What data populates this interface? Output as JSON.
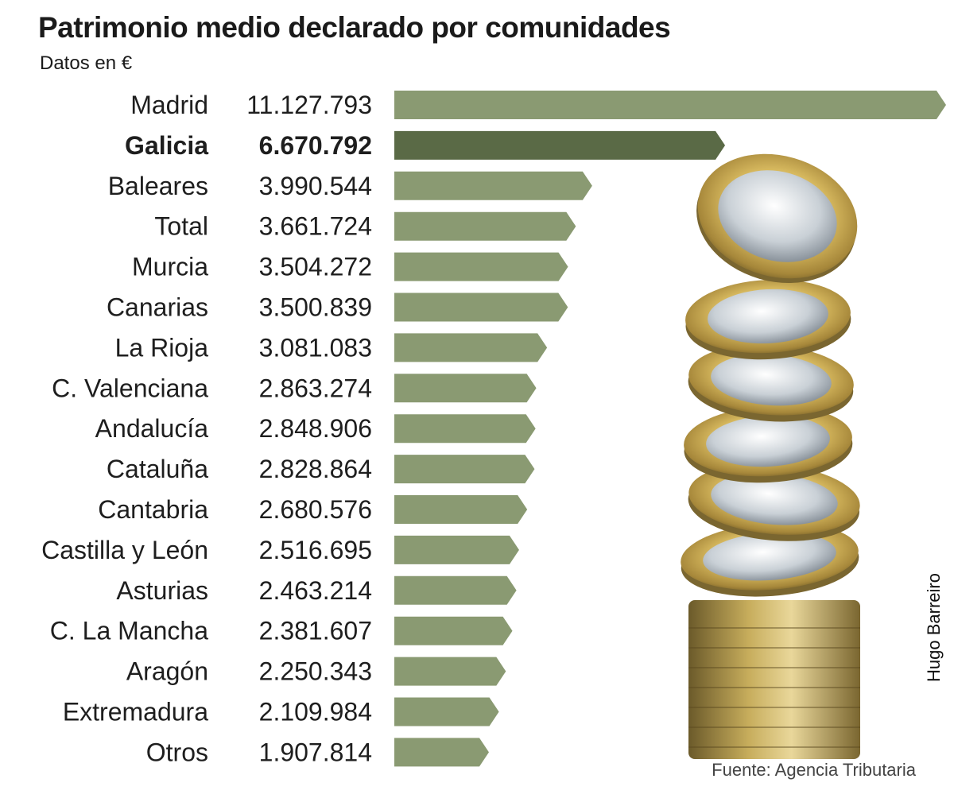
{
  "chart_data": {
    "type": "bar",
    "orientation": "horizontal",
    "title": "Patrimonio medio declarado por comunidades",
    "subtitle": "Datos en €",
    "highlight": "Galicia",
    "categories": [
      "Madrid",
      "Galicia",
      "Baleares",
      "Total",
      "Murcia",
      "Canarias",
      "La Rioja",
      "C. Valenciana",
      "Andalucía",
      "Cataluña",
      "Cantabria",
      "Castilla y León",
      "Asturias",
      "C. La Mancha",
      "Aragón",
      "Extremadura",
      "Otros"
    ],
    "values": [
      11127793,
      6670792,
      3990544,
      3661724,
      3504272,
      3500839,
      3081083,
      2863274,
      2848906,
      2828864,
      2680576,
      2516695,
      2463214,
      2381607,
      2250343,
      2109984,
      1907814
    ],
    "value_labels": [
      "11.127.793",
      "6.670.792",
      "3.990.544",
      "3.661.724",
      "3.504.272",
      "3.500.839",
      "3.081.083",
      "2.863.274",
      "2.848.906",
      "2.828.864",
      "2.680.576",
      "2.516.695",
      "2.463.214",
      "2.381.607",
      "2.250.343",
      "2.109.984",
      "1.907.814"
    ],
    "colors": {
      "bar": "#8a9a72",
      "highlight": "#5a6a46"
    },
    "credit": "Hugo Barreiro",
    "source": "Fuente: Agencia Tributaria"
  }
}
